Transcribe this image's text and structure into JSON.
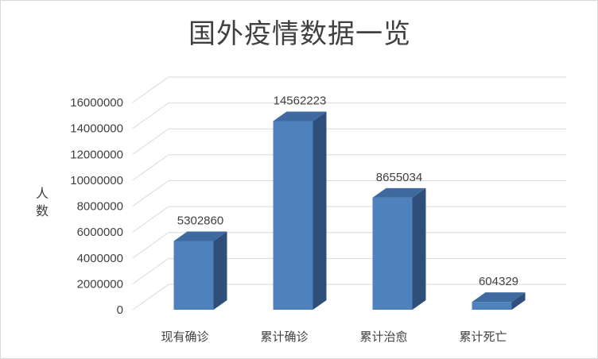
{
  "chart_data": {
    "type": "bar",
    "title": "国外疫情数据一览",
    "ylabel": "人数",
    "xlabel": "",
    "categories": [
      "现有确诊",
      "累计确诊",
      "累计治愈",
      "累计死亡"
    ],
    "values": [
      5302860,
      14562223,
      8655034,
      604329
    ],
    "data_labels": [
      "5302860",
      "14562223",
      "8655034",
      "604329"
    ],
    "ylim": [
      0,
      16000000
    ],
    "yticks": [
      0,
      2000000,
      4000000,
      6000000,
      8000000,
      10000000,
      12000000,
      14000000,
      16000000
    ],
    "ytick_labels": [
      "0",
      "2000000",
      "4000000",
      "6000000",
      "8000000",
      "10000000",
      "12000000",
      "14000000",
      "16000000"
    ],
    "grid": true,
    "style": "3d-column",
    "colors": {
      "bar_front": "#4f81bd",
      "bar_side": "#2f4f7a",
      "bar_top": "#3f6aa0",
      "grid": "#d9d9d9"
    }
  }
}
